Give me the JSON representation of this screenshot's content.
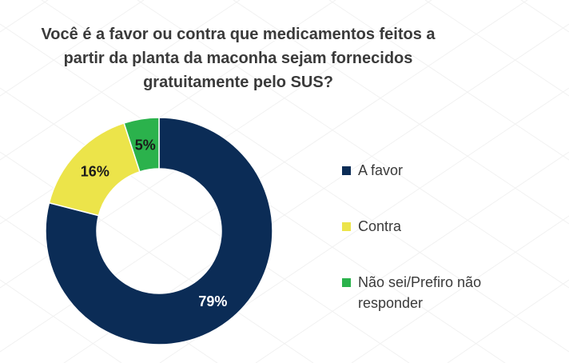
{
  "title_lines": [
    "Você é a favor ou contra que medicamentos feitos a",
    "partir da planta da maconha sejam fornecidos",
    "gratuitamente pelo SUS?"
  ],
  "chart_data": {
    "type": "pie",
    "donut": true,
    "title": "Você é a favor ou contra que medicamentos feitos a partir da planta da maconha sejam fornecidos gratuitamente pelo SUS?",
    "categories": [
      "A favor",
      "Contra",
      "Não sei/Prefiro não responder"
    ],
    "values": [
      79,
      16,
      5
    ],
    "labels": [
      "79%",
      "16%",
      "5%"
    ],
    "colors": [
      "#0b2c56",
      "#ece44a",
      "#2bb24c"
    ],
    "label_colors": [
      "#ffffff",
      "#1a1a1a",
      "#1a1a1a"
    ],
    "legend_position": "right"
  }
}
